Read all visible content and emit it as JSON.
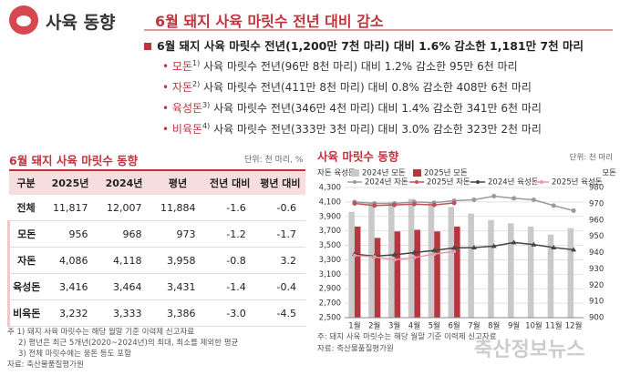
{
  "header": {
    "section": "사육 동향",
    "title": "6월 돼지 사육 마릿수 전년 대비 감소",
    "main_bullet": "6월 돼지 사육 마릿수 전년(1,200만 7천 마리) 대비 1.6% 감소한 1,181만 7천 마리",
    "sub_bullets": [
      {
        "label": "모돈",
        "sup": "1)",
        "text": "사육 마릿수 전년(96만 8천 마리) 대비 1.2% 감소한 95만 6천 마리"
      },
      {
        "label": "자돈",
        "sup": "2)",
        "text": "사육 마릿수 전년(411만 8천 마리) 대비 0.8% 감소한 408만 6천 마리"
      },
      {
        "label": "육성돈",
        "sup": "3)",
        "text": "사육 마릿수 전년(346만 4천 마리) 대비 1.4% 감소한 341만 6천 마리"
      },
      {
        "label": "비육돈",
        "sup": "4)",
        "text": "사육 마릿수 전년(333만 3천 마리) 대비 3.0% 감소한 323만 2천 마리"
      }
    ]
  },
  "table": {
    "title": "6월 돼지 사육 마릿수 동향",
    "unit": "단위: 천 마리, %",
    "columns": [
      "구분",
      "2025년",
      "2024년",
      "평년",
      "전년 대비",
      "평년 대비"
    ],
    "rows": [
      [
        "전체",
        "11,817",
        "12,007",
        "11,884",
        "-1.6",
        "-0.6"
      ],
      [
        "모돈",
        "956",
        "968",
        "973",
        "-1.2",
        "-1.7"
      ],
      [
        "자돈",
        "4,086",
        "4,118",
        "3,958",
        "-0.8",
        "3.2"
      ],
      [
        "육성돈",
        "3,416",
        "3,464",
        "3,431",
        "-1.4",
        "-0.4"
      ],
      [
        "비육돈",
        "3,232",
        "3,333",
        "3,386",
        "-3.0",
        "-4.5"
      ]
    ]
  },
  "notes": [
    "주 1) 돼지 사육 마릿수는 해당 월말 기준 이력제 신고자료",
    "2) 평년은 최근 5개년(2020~2024년)의 최대, 최소를 제외한 평균",
    "3) 전체 마릿수에는 웅돈 등도 포함",
    "자료: 축산물품질평가원"
  ],
  "watermark": "축산정보뉴스",
  "chart_data": {
    "type": "bar-line",
    "title": "사육 마릿수 동향",
    "unit": "단위: 천 마리",
    "y_label": "자돈 육성돈",
    "y2_label": "모돈",
    "note": "주: 돼지 사육 마릿수는 해당 월말 기준 이력제 신고자료",
    "source": "자료: 축산물품질평가원",
    "categories": [
      "1월",
      "2월",
      "3월",
      "4월",
      "5월",
      "6월",
      "7월",
      "8월",
      "9월",
      "10월",
      "11월",
      "12월"
    ],
    "ylim": [
      2500,
      4300
    ],
    "yticks": [
      {
        "value": 2500,
        "label": "2,500"
      },
      {
        "value": 2700,
        "label": "2,700"
      },
      {
        "value": 2900,
        "label": "2,900"
      },
      {
        "value": 3100,
        "label": "3,100"
      },
      {
        "value": 3300,
        "label": "3,300"
      },
      {
        "value": 3500,
        "label": "3,500"
      },
      {
        "value": 3700,
        "label": "3,700"
      },
      {
        "value": 3900,
        "label": "3,900"
      },
      {
        "value": 4100,
        "label": "4,100"
      },
      {
        "value": 4300,
        "label": "4,300"
      }
    ],
    "y2lim": [
      900,
      980
    ],
    "y2ticks": [
      900,
      910,
      920,
      930,
      940,
      950,
      960,
      970,
      980
    ],
    "series": [
      {
        "name": "2024년 모돈",
        "kind": "bar",
        "axis": "y2",
        "color": "#c9c9c9",
        "values": [
          965,
          971,
          971,
          973,
          971,
          968,
          964,
          960,
          958,
          956,
          951,
          955
        ]
      },
      {
        "name": "2025년 모돈",
        "kind": "bar",
        "axis": "y2",
        "color": "#b5363f",
        "values": [
          956,
          949,
          953,
          954,
          953,
          956,
          null,
          null,
          null,
          null,
          null,
          null
        ]
      },
      {
        "name": "2024년 자돈",
        "kind": "line",
        "marker": "circle",
        "color": "#9a9a9a",
        "values": [
          4100,
          4080,
          4080,
          4100,
          4090,
          4118,
          4130,
          4180,
          4150,
          4130,
          4050,
          3980
        ]
      },
      {
        "name": "2025년 자돈",
        "kind": "line",
        "marker": "circle",
        "color": "#c0505a",
        "values": [
          4080,
          4050,
          4060,
          4070,
          4060,
          4086,
          null,
          null,
          null,
          null,
          null,
          null
        ]
      },
      {
        "name": "2024년 육성돈",
        "kind": "line",
        "marker": "triangle",
        "color": "#444444",
        "values": [
          3380,
          3350,
          3370,
          3400,
          3430,
          3464,
          3470,
          3490,
          3540,
          3510,
          3470,
          3440
        ]
      },
      {
        "name": "2025년 육성돈",
        "kind": "line",
        "marker": "dot",
        "color": "#e898a6",
        "values": [
          3360,
          3340,
          3300,
          3330,
          3380,
          3416,
          null,
          null,
          null,
          null,
          null,
          null
        ]
      }
    ]
  }
}
